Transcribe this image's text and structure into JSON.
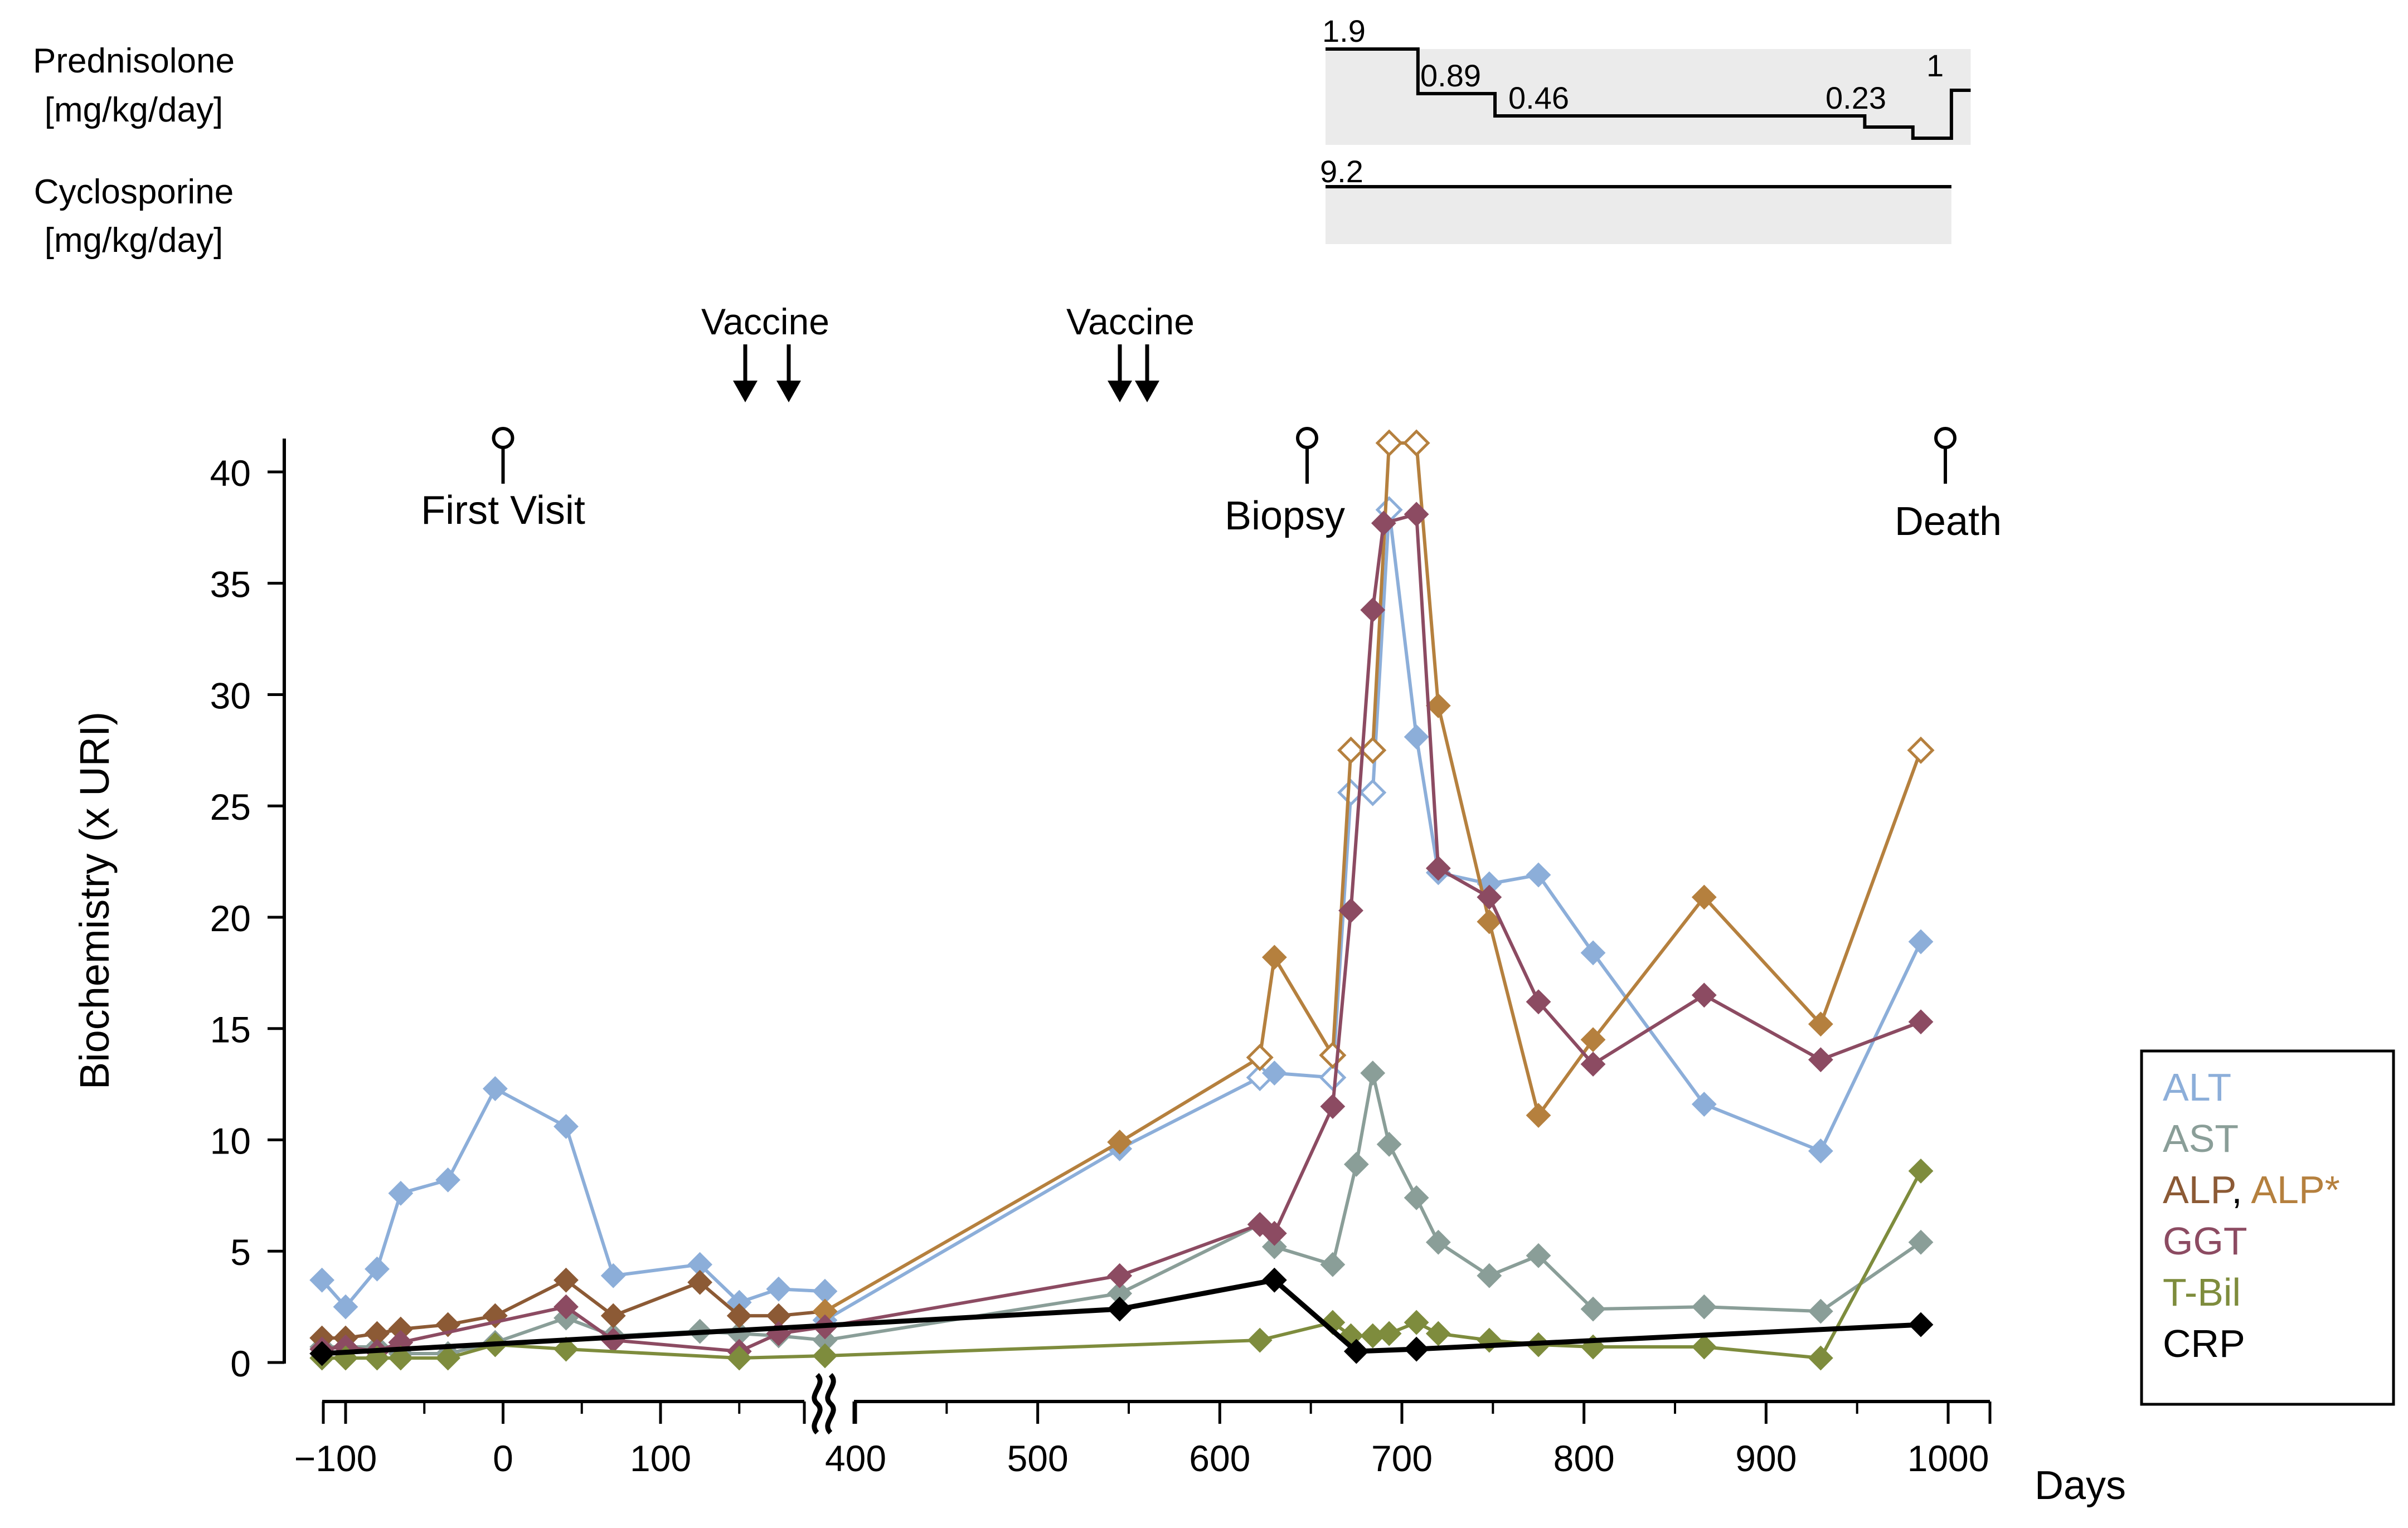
{
  "chart_data": {
    "type": "line",
    "ylabel": "Biochemistry (x URI)",
    "xlabel": "Days",
    "ylim": [
      0,
      42
    ],
    "y_ticks": [
      0,
      5,
      10,
      15,
      20,
      25,
      30,
      35,
      40
    ],
    "x_axis_segments": [
      {
        "range": [
          -115,
          185
        ],
        "ticks": [
          -100,
          0,
          100
        ]
      },
      {
        "range": [
          370,
          1000
        ],
        "ticks": [
          400,
          500,
          600,
          700,
          800,
          900,
          1000
        ]
      }
    ],
    "axis_break_marker": "≈",
    "series": [
      {
        "name": "ALT",
        "color": "#8caed9",
        "points": [
          [
            -115,
            3.7
          ],
          [
            -100,
            2.5
          ],
          [
            -80,
            4.2
          ],
          [
            -65,
            7.6
          ],
          [
            -35,
            8.2
          ],
          [
            -5,
            12.3
          ],
          [
            40,
            10.6
          ],
          [
            70,
            3.9
          ],
          [
            125,
            4.4
          ],
          [
            150,
            2.7
          ],
          [
            175,
            3.3
          ],
          [
            200,
            3.2
          ],
          [
            200,
            1.9
          ],
          [
            545,
            9.6
          ],
          [
            622,
            12.8,
            "open"
          ],
          [
            630,
            13.0
          ],
          [
            662,
            12.8,
            "open"
          ],
          [
            672,
            25.6,
            "open"
          ],
          [
            684,
            25.6,
            "open"
          ],
          [
            693,
            38.3,
            "open"
          ],
          [
            708,
            28.1
          ],
          [
            720,
            22.0
          ],
          [
            748,
            21.5
          ],
          [
            775,
            21.9
          ],
          [
            805,
            18.4
          ],
          [
            866,
            11.6
          ],
          [
            930,
            9.5
          ],
          [
            985,
            18.9
          ]
        ]
      },
      {
        "name": "AST",
        "color": "#8a9e98",
        "points": [
          [
            -115,
            0.7
          ],
          [
            -80,
            0.7
          ],
          [
            -65,
            0.4
          ],
          [
            -35,
            0.4
          ],
          [
            -5,
            0.9
          ],
          [
            40,
            2.0
          ],
          [
            70,
            1.2
          ],
          [
            125,
            1.4
          ],
          [
            150,
            1.3
          ],
          [
            175,
            1.2
          ],
          [
            200,
            1.0
          ],
          [
            545,
            3.1
          ],
          [
            622,
            6.2
          ],
          [
            630,
            5.2
          ],
          [
            662,
            4.4
          ],
          [
            675,
            8.9
          ],
          [
            684,
            13.0
          ],
          [
            693,
            9.8
          ],
          [
            708,
            7.4
          ],
          [
            720,
            5.4
          ],
          [
            748,
            3.9
          ],
          [
            775,
            4.8
          ],
          [
            805,
            2.4
          ],
          [
            866,
            2.5
          ],
          [
            930,
            2.3
          ],
          [
            985,
            5.4
          ]
        ]
      },
      {
        "name": "ALP",
        "color": "#8c5a35",
        "points": [
          [
            -115,
            1.1
          ],
          [
            -100,
            1.1
          ],
          [
            -80,
            1.3
          ],
          [
            -65,
            1.5
          ],
          [
            -35,
            1.7
          ],
          [
            -5,
            2.1
          ],
          [
            40,
            3.7
          ],
          [
            70,
            2.1
          ],
          [
            125,
            3.6
          ],
          [
            150,
            2.1
          ],
          [
            175,
            2.1
          ],
          [
            200,
            2.3
          ]
        ]
      },
      {
        "name": "ALP*",
        "color": "#b5803e",
        "points": [
          [
            200,
            2.3
          ],
          [
            545,
            9.9
          ],
          [
            622,
            13.7,
            "open"
          ],
          [
            630,
            18.2
          ],
          [
            662,
            13.8,
            "open"
          ],
          [
            672,
            27.5,
            "open"
          ],
          [
            684,
            27.5,
            "open"
          ],
          [
            693,
            41.3,
            "open"
          ],
          [
            708,
            41.3,
            "open"
          ],
          [
            720,
            29.5
          ],
          [
            748,
            19.8
          ],
          [
            775,
            11.1
          ],
          [
            805,
            14.5
          ],
          [
            866,
            20.9
          ],
          [
            930,
            15.2
          ],
          [
            985,
            27.5,
            "open"
          ]
        ]
      },
      {
        "name": "GGT",
        "color": "#8c4b62",
        "points": [
          [
            -115,
            0.6
          ],
          [
            -100,
            0.7
          ],
          [
            -80,
            0.5
          ],
          [
            -65,
            0.9
          ],
          [
            40,
            2.5
          ],
          [
            70,
            1.0
          ],
          [
            150,
            0.5
          ],
          [
            175,
            1.3
          ],
          [
            200,
            1.6
          ],
          [
            545,
            3.9
          ],
          [
            622,
            6.2
          ],
          [
            630,
            5.8
          ],
          [
            662,
            11.5
          ],
          [
            672,
            20.3
          ],
          [
            684,
            33.8
          ],
          [
            690,
            37.7
          ],
          [
            708,
            38.1
          ],
          [
            720,
            22.2
          ],
          [
            748,
            20.9
          ],
          [
            775,
            16.2
          ],
          [
            805,
            13.4
          ],
          [
            866,
            16.5
          ],
          [
            930,
            13.6
          ],
          [
            985,
            15.3
          ]
        ]
      },
      {
        "name": "T-Bil",
        "color": "#7e8c3d",
        "points": [
          [
            -115,
            0.2
          ],
          [
            -100,
            0.2
          ],
          [
            -80,
            0.2
          ],
          [
            -65,
            0.2
          ],
          [
            -35,
            0.2
          ],
          [
            -5,
            0.8
          ],
          [
            40,
            0.6
          ],
          [
            150,
            0.2
          ],
          [
            200,
            0.3
          ],
          [
            622,
            1.0
          ],
          [
            662,
            1.8
          ],
          [
            672,
            1.2
          ],
          [
            684,
            1.2
          ],
          [
            693,
            1.3
          ],
          [
            708,
            1.8
          ],
          [
            720,
            1.3
          ],
          [
            748,
            1.0
          ],
          [
            775,
            0.8
          ],
          [
            805,
            0.7
          ],
          [
            866,
            0.7
          ],
          [
            930,
            0.2
          ],
          [
            985,
            8.6
          ]
        ]
      },
      {
        "name": "CRP",
        "color": "#000000",
        "points": [
          [
            -115,
            0.4
          ],
          [
            545,
            2.4
          ],
          [
            630,
            3.7
          ],
          [
            675,
            0.5
          ],
          [
            708,
            0.6
          ],
          [
            985,
            1.7
          ]
        ]
      }
    ],
    "legend": {
      "placement": "right",
      "entries": [
        {
          "parts": [
            {
              "text": "ALT",
              "color": "#8caed9"
            }
          ]
        },
        {
          "parts": [
            {
              "text": "AST",
              "color": "#8a9e98"
            }
          ]
        },
        {
          "parts": [
            {
              "text": "ALP",
              "color": "#8c5a35"
            },
            {
              "text": ", ",
              "color": "#000000"
            },
            {
              "text": "ALP*",
              "color": "#b5803e"
            }
          ]
        },
        {
          "parts": [
            {
              "text": "GGT",
              "color": "#8c4b62"
            }
          ]
        },
        {
          "parts": [
            {
              "text": "T-Bil",
              "color": "#7e8c3d"
            }
          ]
        },
        {
          "parts": [
            {
              "text": "CRP",
              "color": "#000000"
            }
          ]
        }
      ]
    },
    "events": [
      {
        "label": "First Visit",
        "day": 0
      },
      {
        "label": "Biopsy",
        "day": 647
      },
      {
        "label": "Death",
        "day": 1000
      }
    ],
    "vaccines": [
      {
        "label": "Vaccine",
        "days": [
          150,
          175
        ]
      },
      {
        "label": "Vaccine",
        "days": [
          545,
          560
        ]
      }
    ],
    "treatments": [
      {
        "name": "Prednisolone",
        "unit": "[mg/kg/day]",
        "steps": [
          {
            "from": 660,
            "to": 708,
            "dose": 1.9,
            "label": "1.9"
          },
          {
            "from": 708,
            "to": 748,
            "dose": 0.89,
            "label": "0.89"
          },
          {
            "from": 748,
            "to": 940,
            "dose": 0.46,
            "label": "0.46"
          },
          {
            "from": 940,
            "to": 965,
            "dose": 0.23,
            "label": "0.23"
          },
          {
            "from": 965,
            "to": 985,
            "dose": 0.1,
            "label": ""
          },
          {
            "from": 985,
            "to": 995,
            "dose": 1.0,
            "label": "1"
          }
        ]
      },
      {
        "name": "Cyclosporine",
        "unit": "[mg/kg/day]",
        "steps": [
          {
            "from": 660,
            "to": 985,
            "dose": 9.2,
            "label": "9.2"
          }
        ]
      }
    ]
  }
}
